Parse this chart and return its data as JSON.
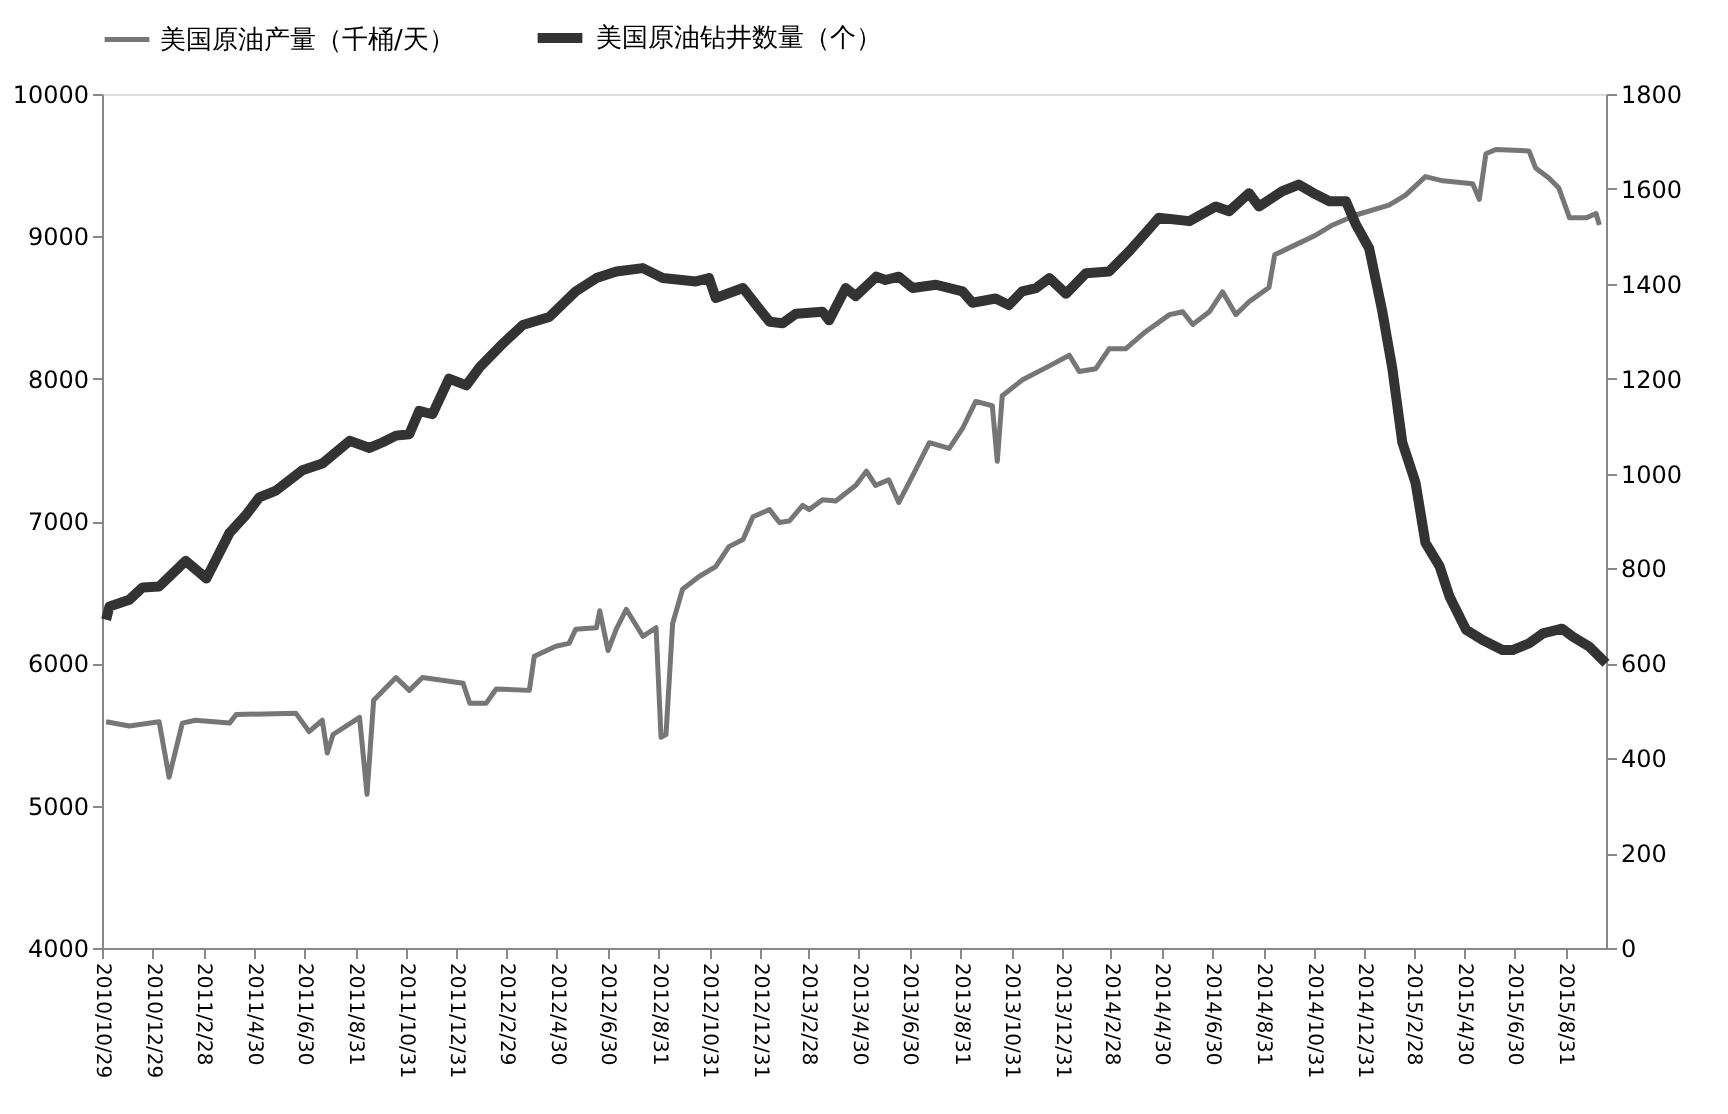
{
  "chart_data": {
    "type": "line",
    "series": [
      {
        "name": "美国原油产量（千桶/天）",
        "color": "#767676",
        "x": [
          "2010-11-03",
          "2010-12-01",
          "2011-01-06",
          "2011-01-18",
          "2011-02-03",
          "2011-02-19",
          "2011-04-01",
          "2011-04-09",
          "2011-06-20",
          "2011-07-06",
          "2011-07-22",
          "2011-07-28",
          "2011-08-04",
          "2011-09-05",
          "2011-09-14",
          "2011-09-22",
          "2011-10-19",
          "2011-11-04",
          "2011-11-20",
          "2012-01-08",
          "2012-01-16",
          "2012-02-05",
          "2012-02-17",
          "2012-03-28",
          "2012-04-03",
          "2012-04-29",
          "2012-05-15",
          "2012-05-23",
          "2012-06-17",
          "2012-06-21",
          "2012-07-01",
          "2012-07-11",
          "2012-07-23",
          "2012-08-12",
          "2012-08-28",
          "2012-09-03",
          "2012-09-09",
          "2012-09-17",
          "2012-09-29",
          "2012-10-19",
          "2012-11-08",
          "2012-11-24",
          "2012-12-11",
          "2012-12-23",
          "2013-01-12",
          "2013-01-24",
          "2013-02-05",
          "2013-02-21",
          "2013-03-01",
          "2013-03-17",
          "2013-04-02",
          "2013-04-26",
          "2013-05-09",
          "2013-05-20",
          "2013-06-05",
          "2013-06-17",
          "2013-07-04",
          "2013-07-24",
          "2013-08-17",
          "2013-09-02",
          "2013-09-18",
          "2013-10-08",
          "2013-10-14",
          "2013-10-20",
          "2013-11-13",
          "2013-12-16",
          "2014-01-09",
          "2014-01-21",
          "2014-02-10",
          "2014-02-26",
          "2014-03-18",
          "2014-04-11",
          "2014-05-10",
          "2014-05-26",
          "2014-06-07",
          "2014-06-27",
          "2014-07-13",
          "2014-07-29",
          "2014-08-14",
          "2014-09-07",
          "2014-09-14",
          "2014-10-09",
          "2014-11-03",
          "2014-11-23",
          "2014-12-21",
          "2015-01-30",
          "2015-02-19",
          "2015-03-15",
          "2015-04-05",
          "2015-05-11",
          "2015-05-19",
          "2015-05-27",
          "2015-06-08",
          "2015-07-18",
          "2015-07-26",
          "2015-08-11",
          "2015-08-23",
          "2015-09-05",
          "2015-09-25",
          "2015-10-07",
          "2015-10-11"
        ],
        "values": [
          5590,
          5560,
          5590,
          5200,
          5580,
          5600,
          5580,
          5640,
          5650,
          5520,
          5600,
          5370,
          5500,
          5620,
          5080,
          5740,
          5900,
          5810,
          5900,
          5860,
          5720,
          5720,
          5820,
          5810,
          6050,
          6120,
          6140,
          6240,
          6250,
          6370,
          6090,
          6240,
          6380,
          6190,
          6250,
          5480,
          5500,
          6280,
          6520,
          6610,
          6680,
          6820,
          6870,
          7030,
          7080,
          6990,
          7000,
          7110,
          7080,
          7150,
          7140,
          7250,
          7350,
          7250,
          7290,
          7130,
          7320,
          7550,
          7510,
          7650,
          7840,
          7810,
          7420,
          7880,
          7990,
          8090,
          8165,
          8050,
          8070,
          8210,
          8210,
          8330,
          8450,
          8470,
          8380,
          8470,
          8610,
          8450,
          8540,
          8640,
          8870,
          8940,
          9010,
          9080,
          9150,
          9220,
          9290,
          9420,
          9390,
          9370,
          9260,
          9580,
          9610,
          9600,
          9480,
          9410,
          9340,
          9130,
          9130,
          9160,
          9080
        ]
      },
      {
        "name": "美国原油钻井数量（个）",
        "color": "#333333",
        "axis": "y2",
        "x": [
          "2010-11-03",
          "2010-11-07",
          "2010-12-01",
          "2010-12-17",
          "2011-01-06",
          "2011-02-07",
          "2011-03-04",
          "2011-04-01",
          "2011-04-21",
          "2011-05-07",
          "2011-05-27",
          "2011-06-28",
          "2011-07-22",
          "2011-08-24",
          "2011-09-17",
          "2011-10-03",
          "2011-10-19",
          "2011-11-04",
          "2011-11-16",
          "2011-12-02",
          "2011-12-22",
          "2012-01-12",
          "2012-01-28",
          "2012-02-25",
          "2012-03-20",
          "2012-04-21",
          "2012-05-23",
          "2012-06-17",
          "2012-07-11",
          "2012-08-12",
          "2012-09-05",
          "2012-10-15",
          "2012-10-31",
          "2012-11-08",
          "2012-12-11",
          "2012-12-27",
          "2013-01-12",
          "2013-01-28",
          "2013-02-13",
          "2013-03-17",
          "2013-03-25",
          "2013-04-14",
          "2013-04-26",
          "2013-05-21",
          "2013-06-01",
          "2013-06-17",
          "2013-07-04",
          "2013-08-01",
          "2013-09-02",
          "2013-09-14",
          "2013-10-12",
          "2013-10-28",
          "2013-11-13",
          "2013-11-30",
          "2013-12-16",
          "2014-01-05",
          "2014-01-29",
          "2014-02-26",
          "2014-03-22",
          "2014-04-15",
          "2014-04-27",
          "2014-06-03",
          "2014-07-05",
          "2014-07-21",
          "2014-08-14",
          "2014-08-26",
          "2014-09-23",
          "2014-10-13",
          "2014-11-03",
          "2014-11-19",
          "2014-12-09",
          "2014-12-21",
          "2015-01-06",
          "2015-01-22",
          "2015-02-03",
          "2015-02-15",
          "2015-03-03",
          "2015-03-15",
          "2015-04-01",
          "2015-04-13",
          "2015-05-03",
          "2015-05-23",
          "2015-06-16",
          "2015-06-28",
          "2015-07-18",
          "2015-08-04",
          "2015-08-27",
          "2015-09-09",
          "2015-09-29",
          "2015-10-19"
        ],
        "values": [
          692,
          720,
          734,
          760,
          762,
          816,
          779,
          875,
          913,
          950,
          964,
          1007,
          1021,
          1069,
          1054,
          1066,
          1080,
          1083,
          1132,
          1125,
          1200,
          1186,
          1224,
          1274,
          1313,
          1330,
          1384,
          1412,
          1426,
          1433,
          1412,
          1405,
          1412,
          1370,
          1391,
          1355,
          1320,
          1317,
          1337,
          1341,
          1323,
          1391,
          1374,
          1415,
          1408,
          1415,
          1391,
          1398,
          1384,
          1360,
          1369,
          1355,
          1384,
          1391,
          1412,
          1379,
          1422,
          1426,
          1468,
          1515,
          1539,
          1532,
          1563,
          1553,
          1591,
          1563,
          1595,
          1609,
          1588,
          1574,
          1574,
          1525,
          1475,
          1341,
          1221,
          1066,
          981,
          854,
          805,
          741,
          671,
          649,
          628,
          628,
          642,
          663,
          673,
          656,
          635,
          600
        ]
      }
    ],
    "xlim": [
      "2010-10-29",
      "2015-10-19"
    ],
    "xticks": [
      {
        "value": "2010-10-29",
        "label": "2010/10/29"
      },
      {
        "value": "2010-12-29",
        "label": "2010/12/29"
      },
      {
        "value": "2011-02-28",
        "label": "2011/2/28"
      },
      {
        "value": "2011-04-30",
        "label": "2011/4/30"
      },
      {
        "value": "2011-06-30",
        "label": "2011/6/30"
      },
      {
        "value": "2011-08-31",
        "label": "2011/8/31"
      },
      {
        "value": "2011-10-31",
        "label": "2011/10/31"
      },
      {
        "value": "2011-12-31",
        "label": "2011/12/31"
      },
      {
        "value": "2012-02-29",
        "label": "2012/2/29"
      },
      {
        "value": "2012-04-30",
        "label": "2012/4/30"
      },
      {
        "value": "2012-06-30",
        "label": "2012/6/30"
      },
      {
        "value": "2012-08-31",
        "label": "2012/8/31"
      },
      {
        "value": "2012-10-31",
        "label": "2012/10/31"
      },
      {
        "value": "2012-12-31",
        "label": "2012/12/31"
      },
      {
        "value": "2013-02-28",
        "label": "2013/2/28"
      },
      {
        "value": "2013-04-30",
        "label": "2013/4/30"
      },
      {
        "value": "2013-06-30",
        "label": "2013/6/30"
      },
      {
        "value": "2013-08-31",
        "label": "2013/8/31"
      },
      {
        "value": "2013-10-31",
        "label": "2013/10/31"
      },
      {
        "value": "2013-12-31",
        "label": "2013/12/31"
      },
      {
        "value": "2014-02-28",
        "label": "2014/2/28"
      },
      {
        "value": "2014-04-30",
        "label": "2014/4/30"
      },
      {
        "value": "2014-06-30",
        "label": "2014/6/30"
      },
      {
        "value": "2014-08-31",
        "label": "2014/8/31"
      },
      {
        "value": "2014-10-31",
        "label": "2014/10/31"
      },
      {
        "value": "2014-12-31",
        "label": "2014/12/31"
      },
      {
        "value": "2015-02-28",
        "label": "2015/2/28"
      },
      {
        "value": "2015-04-30",
        "label": "2015/4/30"
      },
      {
        "value": "2015-06-30",
        "label": "2015/6/30"
      },
      {
        "value": "2015-08-31",
        "label": "2015/8/31"
      }
    ],
    "ylim": [
      4000,
      10000
    ],
    "yticks": [
      4000,
      5000,
      6000,
      7000,
      8000,
      9000,
      10000
    ],
    "y2lim": [
      0,
      1800
    ],
    "y2ticks": [
      0,
      200,
      400,
      600,
      800,
      1000,
      1200,
      1400,
      1600,
      1800
    ],
    "grid": false,
    "legend": "top",
    "marker": "none",
    "line_style": "solid"
  }
}
